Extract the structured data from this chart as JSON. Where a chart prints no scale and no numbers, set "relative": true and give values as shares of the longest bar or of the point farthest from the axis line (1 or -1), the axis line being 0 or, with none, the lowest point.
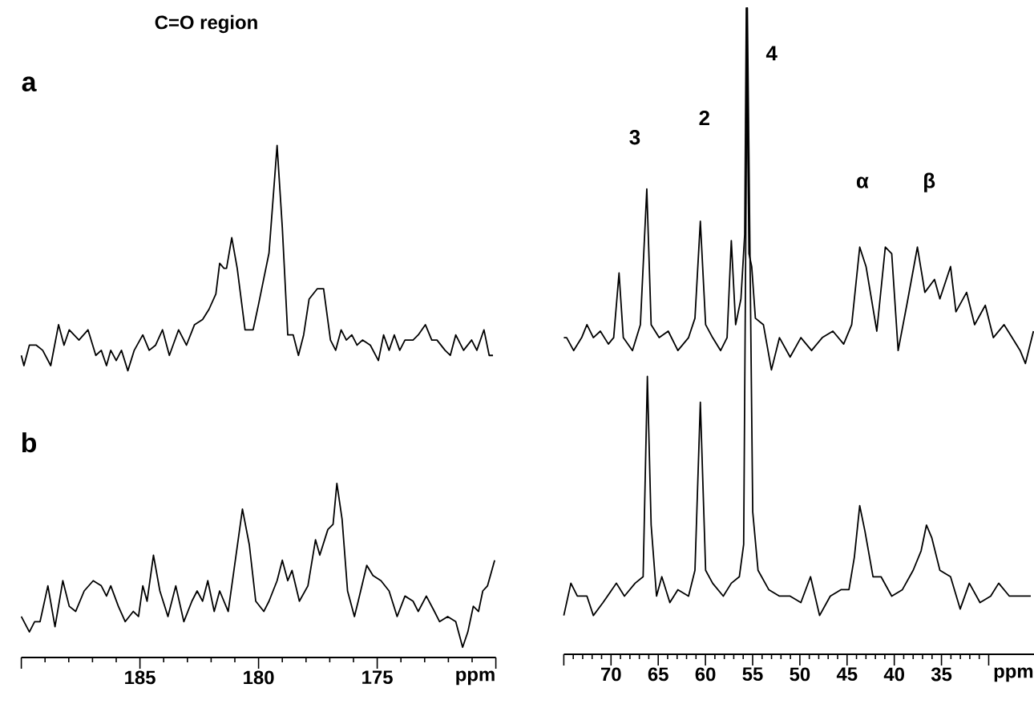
{
  "chart_data": [
    {
      "type": "line",
      "title": "C=O region",
      "annotations": [
        "a",
        "b"
      ],
      "relative": true,
      "xlabel": "ppm",
      "xlim": [
        190,
        170
      ],
      "xticks": [
        {
          "value": 190,
          "label": null
        },
        185,
        180,
        175,
        {
          "value": 170,
          "label": null
        }
      ],
      "tick_labels": "x",
      "series": [
        {
          "color": "#000000",
          "x": [
            190.0,
            189.89,
            189.66,
            189.37,
            189.1,
            188.76,
            188.43,
            188.2,
            187.98,
            187.57,
            187.19,
            186.86,
            186.63,
            186.41,
            186.23,
            186.0,
            185.78,
            185.51,
            185.24,
            184.88,
            184.61,
            184.34,
            184.05,
            183.76,
            183.37,
            183.04,
            182.7,
            182.36,
            182.09,
            181.8,
            181.64,
            181.46,
            181.35,
            181.13,
            180.9,
            180.57,
            180.23,
            180.0,
            179.78,
            179.56,
            179.22,
            179.0,
            178.77,
            178.54,
            178.32,
            178.1,
            177.87,
            177.53,
            177.26,
            176.97,
            176.75,
            176.52,
            176.3,
            176.07,
            175.85,
            175.62,
            175.29,
            174.95,
            174.73,
            174.5,
            174.28,
            174.05,
            173.83,
            173.49,
            173.27,
            172.97,
            172.7,
            172.48,
            172.14,
            171.92,
            171.69,
            171.36,
            171.02,
            170.8,
            170.5,
            170.28,
            170.12
          ],
          "values": [
            0.59,
            0.57,
            0.61,
            0.61,
            0.6,
            0.57,
            0.65,
            0.61,
            0.64,
            0.62,
            0.64,
            0.59,
            0.6,
            0.57,
            0.6,
            0.58,
            0.6,
            0.56,
            0.6,
            0.63,
            0.6,
            0.61,
            0.64,
            0.59,
            0.64,
            0.61,
            0.65,
            0.66,
            0.68,
            0.71,
            0.77,
            0.76,
            0.76,
            0.82,
            0.76,
            0.64,
            0.64,
            0.69,
            0.74,
            0.79,
            1.0,
            0.84,
            0.63,
            0.63,
            0.59,
            0.63,
            0.7,
            0.72,
            0.72,
            0.62,
            0.6,
            0.64,
            0.62,
            0.63,
            0.61,
            0.62,
            0.61,
            0.58,
            0.63,
            0.6,
            0.63,
            0.6,
            0.62,
            0.62,
            0.63,
            0.65,
            0.62,
            0.62,
            0.6,
            0.59,
            0.63,
            0.6,
            0.62,
            0.6,
            0.64,
            0.59,
            0.59
          ]
        },
        {
          "color": "#000000",
          "x": [
            190.0,
            189.66,
            189.44,
            189.21,
            188.88,
            188.58,
            188.25,
            187.98,
            187.71,
            187.35,
            186.97,
            186.63,
            186.41,
            186.23,
            185.91,
            185.62,
            185.28,
            185.06,
            184.88,
            184.7,
            184.43,
            184.16,
            183.82,
            183.49,
            183.15,
            182.81,
            182.59,
            182.36,
            182.14,
            181.87,
            181.64,
            181.28,
            181.01,
            180.68,
            180.39,
            180.12,
            179.78,
            179.56,
            179.22,
            179.0,
            178.77,
            178.59,
            178.28,
            177.92,
            177.6,
            177.42,
            177.08,
            176.86,
            176.7,
            176.48,
            176.25,
            175.96,
            175.8,
            175.44,
            175.18,
            174.84,
            174.5,
            174.16,
            173.83,
            173.49,
            173.27,
            172.93,
            172.59,
            172.37,
            172.03,
            171.69,
            171.4,
            171.18,
            170.95,
            170.73,
            170.55,
            170.35,
            170.05
          ],
          "values": [
            0.08,
            0.05,
            0.07,
            0.07,
            0.14,
            0.06,
            0.15,
            0.1,
            0.09,
            0.13,
            0.15,
            0.14,
            0.12,
            0.14,
            0.1,
            0.07,
            0.09,
            0.08,
            0.14,
            0.11,
            0.2,
            0.13,
            0.08,
            0.14,
            0.07,
            0.11,
            0.13,
            0.11,
            0.15,
            0.09,
            0.13,
            0.09,
            0.18,
            0.29,
            0.22,
            0.11,
            0.09,
            0.11,
            0.15,
            0.19,
            0.15,
            0.17,
            0.11,
            0.14,
            0.23,
            0.2,
            0.25,
            0.26,
            0.34,
            0.27,
            0.13,
            0.08,
            0.11,
            0.18,
            0.16,
            0.15,
            0.13,
            0.08,
            0.12,
            0.11,
            0.09,
            0.12,
            0.09,
            0.07,
            0.08,
            0.07,
            0.02,
            0.05,
            0.1,
            0.09,
            0.13,
            0.14,
            0.19
          ]
        }
      ]
    },
    {
      "type": "line",
      "annotations": [
        "3",
        "2",
        "4",
        "α",
        "β"
      ],
      "relative": true,
      "xlabel": "ppm",
      "xlim": [
        75,
        25.2
      ],
      "xticks": [
        {
          "value": 75,
          "label": null
        },
        70,
        65,
        60,
        55,
        50,
        45,
        40,
        35,
        {
          "value": 30,
          "label": null
        }
      ],
      "tick_labels": "x",
      "series": [
        {
          "color": "#000000",
          "x": [
            75.0,
            74.7,
            73.96,
            73.11,
            72.55,
            71.87,
            71.13,
            70.28,
            69.72,
            69.15,
            68.7,
            67.73,
            66.89,
            66.21,
            65.75,
            64.9,
            63.94,
            62.92,
            61.79,
            61.11,
            60.54,
            59.98,
            59.24,
            58.39,
            57.71,
            57.26,
            56.8,
            56.24,
            55.84,
            55.67,
            55.39,
            55.1,
            54.71,
            53.86,
            53.01,
            52.16,
            51.03,
            49.89,
            48.76,
            47.63,
            46.5,
            45.36,
            44.51,
            43.66,
            42.99,
            42.42,
            41.85,
            40.95,
            40.27,
            39.59,
            38.68,
            37.55,
            36.76,
            35.74,
            35.17,
            34.04,
            33.47,
            32.34,
            31.49,
            30.36,
            29.51,
            28.37,
            27.52,
            26.67,
            26.11,
            25.26
          ],
          "values": [
            0.49,
            0.49,
            0.47,
            0.49,
            0.51,
            0.49,
            0.5,
            0.48,
            0.49,
            0.59,
            0.49,
            0.47,
            0.51,
            0.72,
            0.51,
            0.49,
            0.5,
            0.47,
            0.49,
            0.52,
            0.67,
            0.51,
            0.49,
            0.47,
            0.49,
            0.64,
            0.51,
            0.55,
            0.65,
            1.0,
            0.62,
            0.6,
            0.52,
            0.51,
            0.44,
            0.49,
            0.46,
            0.49,
            0.47,
            0.49,
            0.5,
            0.48,
            0.51,
            0.63,
            0.6,
            0.55,
            0.5,
            0.63,
            0.62,
            0.47,
            0.54,
            0.63,
            0.56,
            0.58,
            0.55,
            0.6,
            0.53,
            0.56,
            0.51,
            0.54,
            0.49,
            0.51,
            0.49,
            0.47,
            0.45,
            0.5
          ]
        },
        {
          "color": "#000000",
          "x": [
            75.0,
            74.25,
            73.57,
            72.55,
            71.87,
            70.85,
            69.43,
            68.58,
            67.45,
            66.6,
            66.15,
            65.75,
            65.18,
            64.62,
            63.77,
            62.92,
            61.79,
            61.11,
            60.54,
            59.98,
            59.24,
            58.11,
            57.26,
            56.41,
            55.95,
            55.56,
            54.99,
            54.43,
            53.29,
            52.16,
            51.03,
            49.89,
            48.87,
            47.91,
            46.78,
            45.65,
            44.8,
            44.23,
            43.66,
            43.1,
            42.25,
            41.4,
            40.27,
            39.14,
            38.0,
            37.16,
            36.59,
            36.02,
            35.17,
            34.04,
            33.02,
            32.05,
            30.92,
            29.79,
            28.94,
            27.81,
            26.67,
            25.54
          ],
          "values": [
            0.06,
            0.11,
            0.09,
            0.09,
            0.06,
            0.08,
            0.11,
            0.09,
            0.11,
            0.12,
            0.43,
            0.2,
            0.09,
            0.12,
            0.08,
            0.1,
            0.09,
            0.13,
            0.39,
            0.13,
            0.11,
            0.09,
            0.11,
            0.12,
            0.17,
            1.0,
            0.22,
            0.13,
            0.1,
            0.09,
            0.09,
            0.08,
            0.12,
            0.06,
            0.09,
            0.1,
            0.1,
            0.15,
            0.23,
            0.19,
            0.12,
            0.12,
            0.09,
            0.1,
            0.13,
            0.16,
            0.2,
            0.18,
            0.13,
            0.12,
            0.07,
            0.11,
            0.08,
            0.09,
            0.11,
            0.09,
            0.09,
            0.09
          ]
        }
      ]
    }
  ]
}
